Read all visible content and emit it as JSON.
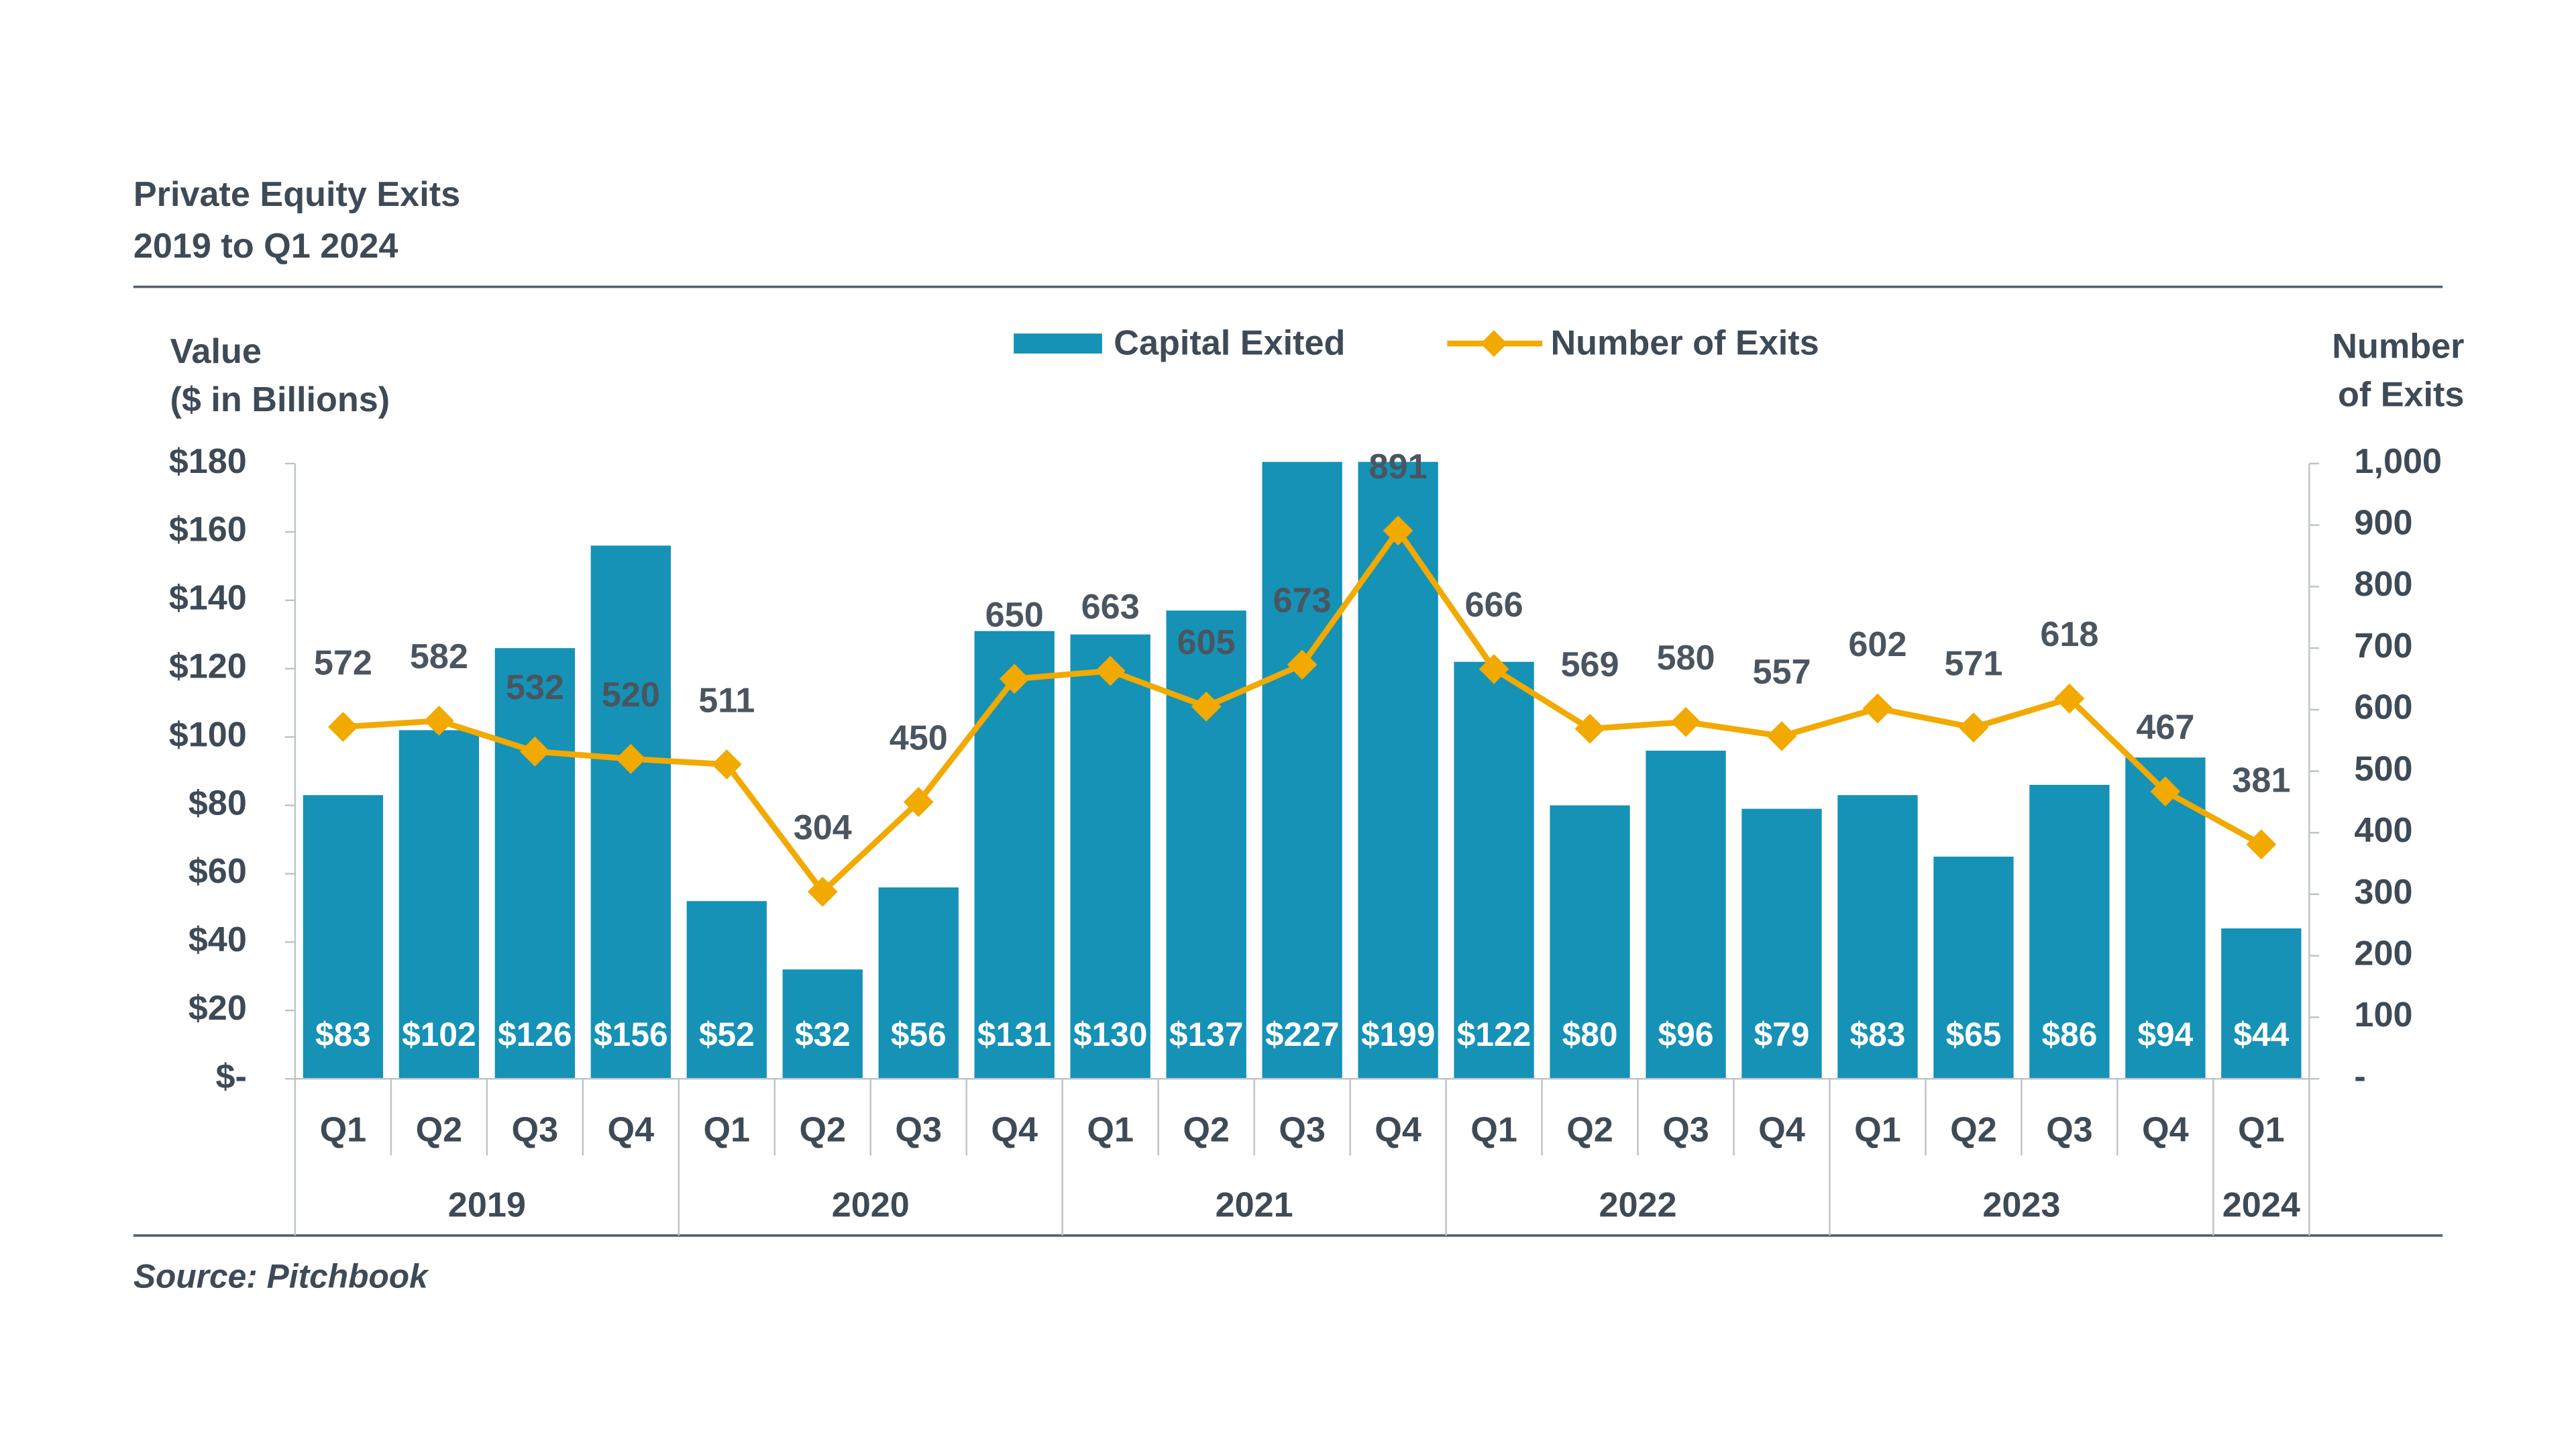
{
  "chart_data": {
    "type": "bar",
    "title": "Private Equity Exits",
    "subtitle": "2019 to Q1 2024",
    "y_label": [
      "Value",
      "($ in Billions)"
    ],
    "y2_label": [
      "Number",
      "of Exits"
    ],
    "source": "Source: Pitchbook",
    "category_groups": [
      {
        "label": "2019",
        "categories": [
          "Q1",
          "Q2",
          "Q3",
          "Q4"
        ]
      },
      {
        "label": "2020",
        "categories": [
          "Q1",
          "Q2",
          "Q3",
          "Q4"
        ]
      },
      {
        "label": "2021",
        "categories": [
          "Q1",
          "Q2",
          "Q3",
          "Q4"
        ]
      },
      {
        "label": "2022",
        "categories": [
          "Q1",
          "Q2",
          "Q3",
          "Q4"
        ]
      },
      {
        "label": "2023",
        "categories": [
          "Q1",
          "Q2",
          "Q3",
          "Q4"
        ]
      },
      {
        "label": "2024",
        "categories": [
          "Q1"
        ]
      }
    ],
    "series": [
      {
        "name": "Capital Exited",
        "type": "bar",
        "color": "#1592b5",
        "values": [
          83,
          102,
          126,
          156,
          52,
          32,
          56,
          131,
          130,
          137,
          227,
          199,
          122,
          80,
          96,
          79,
          83,
          65,
          86,
          94,
          44
        ],
        "value_labels": [
          "$83",
          "$102",
          "$126",
          "$156",
          "$52",
          "$32",
          "$56",
          "$131",
          "$130",
          "$137",
          "$227",
          "$199",
          "$122",
          "$80",
          "$96",
          "$79",
          "$83",
          "$65",
          "$86",
          "$94",
          "$44"
        ]
      },
      {
        "name": "Number of Exits",
        "type": "line",
        "axis": "y2",
        "color": "#f2a900",
        "marker": "diamond",
        "values": [
          572,
          582,
          532,
          520,
          511,
          304,
          450,
          650,
          663,
          605,
          673,
          891,
          666,
          569,
          580,
          557,
          602,
          571,
          618,
          467,
          381
        ]
      }
    ],
    "ylim": [
      0,
      180
    ],
    "yticks": [
      {
        "value": 0,
        "label": "$-"
      },
      {
        "value": 20,
        "label": "$20"
      },
      {
        "value": 40,
        "label": "$40"
      },
      {
        "value": 60,
        "label": "$60"
      },
      {
        "value": 80,
        "label": "$80"
      },
      {
        "value": 100,
        "label": "$100"
      },
      {
        "value": 120,
        "label": "$120"
      },
      {
        "value": 140,
        "label": "$140"
      },
      {
        "value": 160,
        "label": "$160"
      },
      {
        "value": 180,
        "label": "$180"
      }
    ],
    "y2lim": [
      0,
      1000
    ],
    "y2ticks": [
      {
        "value": 0,
        "label": "-"
      },
      100,
      200,
      300,
      400,
      500,
      600,
      700,
      800,
      900,
      {
        "value": 1000,
        "label": "1,000"
      }
    ],
    "legend": "top"
  }
}
